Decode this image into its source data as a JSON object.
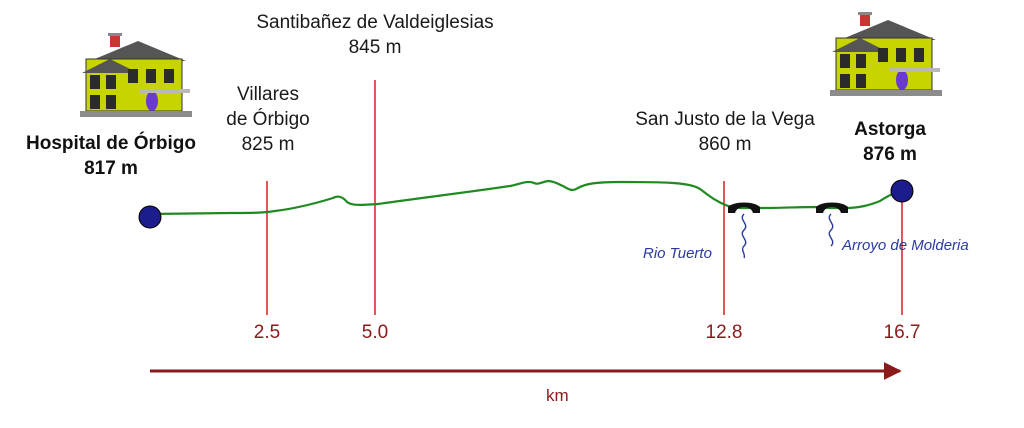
{
  "chart_data": {
    "type": "line",
    "xlabel": "km",
    "points": [
      {
        "name": "Hospital de Órbigo",
        "elevation": "817 m",
        "km": "",
        "endpoint": true
      },
      {
        "name": "Villares de Órbigo",
        "name_lines": [
          "Villares",
          "de Órbigo"
        ],
        "elevation": "825 m",
        "km": "2.5"
      },
      {
        "name": "Santibañez de Valdeiglesias",
        "elevation": "845 m",
        "km": "5.0"
      },
      {
        "name": "San Justo de la Vega",
        "elevation": "860 m",
        "km": "12.8"
      },
      {
        "name": "Astorga",
        "elevation": "876 m",
        "km": "16.7",
        "endpoint": true
      }
    ],
    "rivers": [
      "Rio Tuerto",
      "Arroyo de Molderia"
    ],
    "colors": {
      "profile": "#1f8a1f",
      "marker_line": "#d62020",
      "axis": "#8b1a1a",
      "endpoint": "#1c1c8c",
      "river_text": "#2a3aa0"
    }
  },
  "icons": [
    "house-icon",
    "bridge-icon"
  ]
}
